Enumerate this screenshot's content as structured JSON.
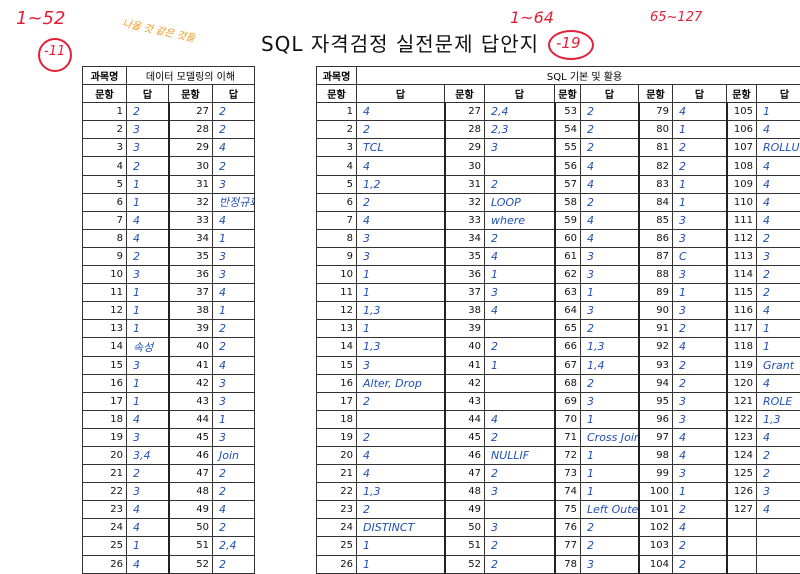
{
  "title": "SQL 자격검정 실전문제 답안지",
  "left": {
    "subject_label": "과목명",
    "subject": "데이터 모델링의 이해",
    "col_num": "문항",
    "col_ans": "답",
    "rows": [
      [
        "1",
        "2",
        "27",
        "2"
      ],
      [
        "2",
        "3",
        "28",
        "2"
      ],
      [
        "3",
        "3",
        "29",
        "4"
      ],
      [
        "4",
        "2",
        "30",
        "2"
      ],
      [
        "5",
        "1",
        "31",
        "3"
      ],
      [
        "6",
        "1",
        "32",
        "반정규화"
      ],
      [
        "7",
        "4",
        "33",
        "4"
      ],
      [
        "8",
        "4",
        "34",
        "1"
      ],
      [
        "9",
        "2",
        "35",
        "3"
      ],
      [
        "10",
        "3",
        "36",
        "3"
      ],
      [
        "11",
        "1",
        "37",
        "4"
      ],
      [
        "12",
        "1",
        "38",
        "1"
      ],
      [
        "13",
        "1",
        "39",
        "2"
      ],
      [
        "14",
        "속성",
        "40",
        "2"
      ],
      [
        "15",
        "3",
        "41",
        "4"
      ],
      [
        "16",
        "1",
        "42",
        "3"
      ],
      [
        "17",
        "1",
        "43",
        "3"
      ],
      [
        "18",
        "4",
        "44",
        "1"
      ],
      [
        "19",
        "3",
        "45",
        "3"
      ],
      [
        "20",
        "3,4",
        "46",
        "Join"
      ],
      [
        "21",
        "2",
        "47",
        "2"
      ],
      [
        "22",
        "3",
        "48",
        "2"
      ],
      [
        "23",
        "4",
        "49",
        "4"
      ],
      [
        "24",
        "4",
        "50",
        "2"
      ],
      [
        "25",
        "1",
        "51",
        "2,4"
      ],
      [
        "26",
        "4",
        "52",
        "2"
      ]
    ]
  },
  "right": {
    "subject_label": "과목명",
    "subject": "SQL 기본 및 활용",
    "col_num": "문항",
    "col_ans": "답",
    "rows": [
      [
        "1",
        "4",
        "27",
        "2,4",
        "53",
        "2",
        "79",
        "4",
        "105",
        "1"
      ],
      [
        "2",
        "2",
        "28",
        "2,3",
        "54",
        "2",
        "80",
        "1",
        "106",
        "4"
      ],
      [
        "3",
        "TCL",
        "29",
        "3",
        "55",
        "2",
        "81",
        "2",
        "107",
        "ROLLUP"
      ],
      [
        "4",
        "4",
        "30",
        "",
        "56",
        "4",
        "82",
        "2",
        "108",
        "4"
      ],
      [
        "5",
        "1,2",
        "31",
        "2",
        "57",
        "4",
        "83",
        "1",
        "109",
        "4"
      ],
      [
        "6",
        "2",
        "32",
        "LOOP",
        "58",
        "2",
        "84",
        "1",
        "110",
        "4"
      ],
      [
        "7",
        "4",
        "33",
        "where",
        "59",
        "4",
        "85",
        "3",
        "111",
        "4"
      ],
      [
        "8",
        "3",
        "34",
        "2",
        "60",
        "4",
        "86",
        "3",
        "112",
        "2"
      ],
      [
        "9",
        "3",
        "35",
        "4",
        "61",
        "3",
        "87",
        "C",
        "113",
        "3"
      ],
      [
        "10",
        "1",
        "36",
        "1",
        "62",
        "3",
        "88",
        "3",
        "114",
        "2"
      ],
      [
        "11",
        "1",
        "37",
        "3",
        "63",
        "1",
        "89",
        "1",
        "115",
        "2"
      ],
      [
        "12",
        "1,3",
        "38",
        "4",
        "64",
        "3",
        "90",
        "3",
        "116",
        "4"
      ],
      [
        "13",
        "1",
        "39",
        "",
        "65",
        "2",
        "91",
        "2",
        "117",
        "1"
      ],
      [
        "14",
        "1,3",
        "40",
        "2",
        "66",
        "1,3",
        "92",
        "4",
        "118",
        "1"
      ],
      [
        "15",
        "3",
        "41",
        "1",
        "67",
        "1,4",
        "93",
        "2",
        "119",
        "Grant"
      ],
      [
        "16",
        "Alter, Drop",
        "42",
        "",
        "68",
        "2",
        "94",
        "2",
        "120",
        "4"
      ],
      [
        "17",
        "2",
        "43",
        "",
        "69",
        "3",
        "95",
        "3",
        "121",
        "ROLE"
      ],
      [
        "18",
        "",
        "44",
        "4",
        "70",
        "1",
        "96",
        "3",
        "122",
        "1,3"
      ],
      [
        "19",
        "2",
        "45",
        "2",
        "71",
        "Cross Join",
        "97",
        "4",
        "123",
        "4"
      ],
      [
        "20",
        "4",
        "46",
        "NULLIF",
        "72",
        "1",
        "98",
        "4",
        "124",
        "2"
      ],
      [
        "21",
        "4",
        "47",
        "2",
        "73",
        "1",
        "99",
        "3",
        "125",
        "2"
      ],
      [
        "22",
        "1,3",
        "48",
        "3",
        "74",
        "1",
        "100",
        "1",
        "126",
        "3"
      ],
      [
        "23",
        "2",
        "49",
        "",
        "75",
        "Left Outer Join",
        "101",
        "2",
        "127",
        "4"
      ],
      [
        "24",
        "DISTINCT",
        "50",
        "3",
        "76",
        "2",
        "102",
        "4",
        "",
        ""
      ],
      [
        "25",
        "1",
        "51",
        "2",
        "77",
        "2",
        "103",
        "2",
        "",
        ""
      ],
      [
        "26",
        "1",
        "52",
        "2",
        "78",
        "3",
        "104",
        "2",
        "",
        ""
      ]
    ]
  },
  "notes": {
    "top_left": "1~52",
    "top_left_circle": "-11",
    "top_mid": "1~64",
    "top_mid_circle": "-19",
    "top_right": "65~127",
    "orange_note": "나올 것 같은 것들"
  }
}
